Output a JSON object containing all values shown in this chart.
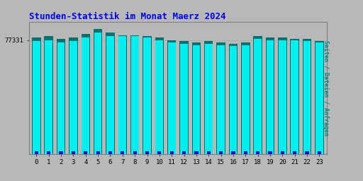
{
  "title": "Stunden-Statistik im Monat Maerz 2024",
  "title_color": "#0000ee",
  "title_fontsize": 9,
  "ylabel": "Seiten / Dateien / Anfragen",
  "ylabel_color": "#008888",
  "background_color": "#b8b8b8",
  "plot_bg_color": "#b8b8b8",
  "categories": [
    0,
    1,
    2,
    3,
    4,
    5,
    6,
    7,
    8,
    9,
    10,
    11,
    12,
    13,
    14,
    15,
    16,
    17,
    18,
    19,
    20,
    21,
    22,
    23
  ],
  "ytick_label": "77331",
  "cyan_values": [
    92,
    93,
    91,
    92,
    95,
    99,
    96,
    96,
    96,
    95,
    93,
    91,
    90,
    89,
    90,
    89,
    88,
    89,
    94,
    93,
    93,
    93,
    92,
    91
  ],
  "teal_values": [
    95,
    96,
    94,
    95,
    98,
    102,
    99,
    97,
    97,
    96,
    95,
    93,
    92,
    91,
    92,
    91,
    90,
    91,
    96,
    95,
    95,
    94,
    94,
    92
  ],
  "blue_values": [
    2,
    2,
    2,
    2,
    2,
    2,
    2,
    2,
    2,
    2,
    2,
    2,
    2,
    2,
    2,
    2,
    2,
    2,
    2,
    2,
    2,
    2,
    2,
    2
  ],
  "cyan_color": "#00eeee",
  "teal_color": "#007070",
  "blue_color": "#0000cc",
  "ylim_min": 0,
  "ylim_max": 108,
  "ytick_pos": 93,
  "grid_color": "#999999",
  "grid_alpha": 0.5
}
